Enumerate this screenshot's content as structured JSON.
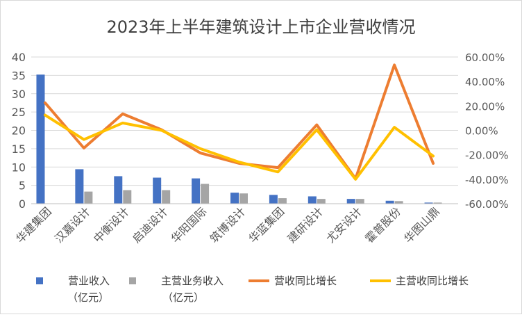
{
  "chart_data": {
    "type": "bar",
    "title": "2023年上半年建筑设计上市企业营收情况",
    "categories": [
      "华建集团",
      "汉嘉设计",
      "中衡设计",
      "启迪设计",
      "华阳国际",
      "筑博设计",
      "华蓝集团",
      "建研设计",
      "尤安设计",
      "霍普股份",
      "华图山鼎"
    ],
    "series": [
      {
        "name": "营业收入（亿元）",
        "kind": "bar",
        "axis": "left",
        "color": "#4472C4",
        "values": [
          35.2,
          9.4,
          7.5,
          7.1,
          6.9,
          3.0,
          2.4,
          2.0,
          1.3,
          0.8,
          0.3
        ]
      },
      {
        "name": "主营业务收入（亿元）",
        "kind": "bar",
        "axis": "left",
        "color": "#A5A5A5",
        "values": [
          0,
          3.3,
          3.7,
          3.7,
          5.4,
          2.8,
          1.5,
          1.3,
          1.3,
          0.7,
          0.3
        ]
      },
      {
        "name": "营收同比增长",
        "kind": "line",
        "axis": "right",
        "color": "#ED7D31",
        "values": [
          22.5,
          -14.5,
          13.5,
          0.5,
          -18.5,
          -27,
          -30.5,
          4.5,
          -39.5,
          53.5,
          -27
        ]
      },
      {
        "name": "主营收同比增长",
        "kind": "line",
        "axis": "right",
        "color": "#FFC000",
        "values": [
          12.5,
          -7.5,
          6.0,
          0.0,
          -15.0,
          -26.0,
          -34.0,
          0.5,
          -40.0,
          2.5,
          -21.0
        ]
      }
    ],
    "y_left": {
      "min": 0,
      "max": 40,
      "ticks": [
        "0",
        "5",
        "10",
        "15",
        "20",
        "25",
        "30",
        "35",
        "40"
      ]
    },
    "y_right": {
      "min": -60,
      "max": 60,
      "ticks": [
        "-60.00%",
        "-40.00%",
        "-20.00%",
        "0.00%",
        "20.00%",
        "40.00%",
        "60.00%"
      ]
    },
    "legend_position": "bottom",
    "legend_labels": {
      "s0_line1": "营业收入",
      "s0_line2": "（亿元）",
      "s1_line1": "主营业务收入",
      "s1_line2": "（亿元）",
      "s2": "营收同比增长",
      "s3": "主营收同比增长"
    },
    "grid": true
  }
}
